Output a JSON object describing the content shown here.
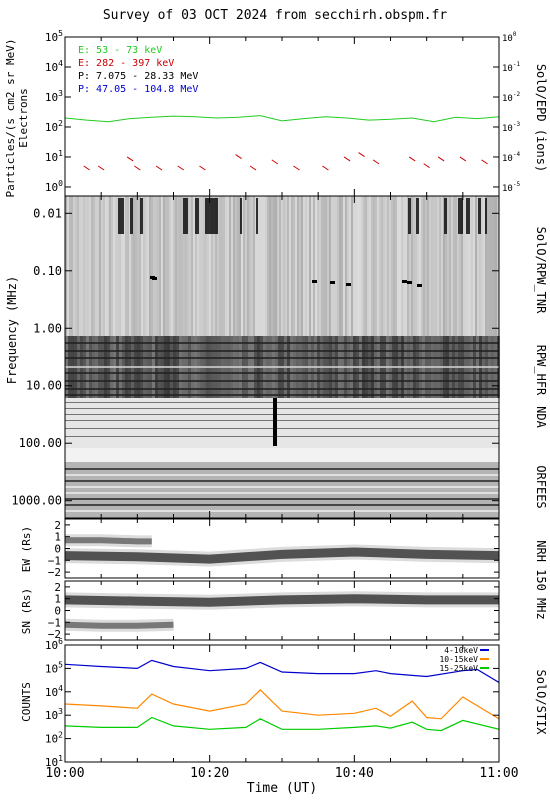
{
  "title": "Survey of 03 OCT 2024 from secchirh.obspm.fr",
  "panels": {
    "epd": {
      "ylabel": "Particles/(s cm2 sr MeV)",
      "ylabel2": "Electrons",
      "right_label": "SolO/EPD (ions)",
      "left_ticks": [
        {
          "base": "10",
          "exp": "5"
        },
        {
          "base": "10",
          "exp": "4"
        },
        {
          "base": "10",
          "exp": "3"
        },
        {
          "base": "10",
          "exp": "2"
        },
        {
          "base": "10",
          "exp": "1"
        },
        {
          "base": "10",
          "exp": "0"
        }
      ],
      "right_ticks": [
        {
          "base": "10",
          "exp": "0"
        },
        {
          "base": "10",
          "exp": "-1"
        },
        {
          "base": "10",
          "exp": "-2"
        },
        {
          "base": "10",
          "exp": "-3"
        },
        {
          "base": "10",
          "exp": "-4"
        },
        {
          "base": "10",
          "exp": "-5"
        }
      ],
      "legend": [
        {
          "text": "E: 53 - 73 keV",
          "color": "#22cc22"
        },
        {
          "text": "E: 282 - 397 keV",
          "color": "#cc0000"
        },
        {
          "text": "P: 7.075 - 28.33 MeV",
          "color": "#000000"
        },
        {
          "text": "P: 47.05 - 104.8 MeV",
          "color": "#0000cc"
        }
      ]
    },
    "radio": {
      "ylabel": "Frequency (MHz)",
      "ticks": [
        "0.01",
        "0.10",
        "1.00",
        "10.00",
        "100.00",
        "1000.00"
      ],
      "instruments": [
        "SolO/RPW_TNR",
        "RPW_HFR",
        "NDA",
        "ORFEES"
      ]
    },
    "ew": {
      "ylabel": "EW (Rs)",
      "ticks": [
        "2",
        "1",
        "0",
        "−1",
        "−2"
      ]
    },
    "sn": {
      "ylabel": "SN (Rs)",
      "ticks": [
        "2",
        "1",
        "0",
        "−1",
        "−2"
      ]
    },
    "nrh_label": "NRH 150 MHz",
    "stix": {
      "ylabel": "COUNTS",
      "right_label": "SolO/STIX",
      "ticks": [
        {
          "base": "10",
          "exp": "6"
        },
        {
          "base": "10",
          "exp": "5"
        },
        {
          "base": "10",
          "exp": "4"
        },
        {
          "base": "10",
          "exp": "3"
        },
        {
          "base": "10",
          "exp": "2"
        },
        {
          "base": "10",
          "exp": "1"
        }
      ],
      "legend": [
        {
          "text": "4-10keV",
          "color": "#0000cc"
        },
        {
          "text": "10-15keV",
          "color": "#ff8800"
        },
        {
          "text": "15-25keV",
          "color": "#00cc00"
        }
      ]
    },
    "xaxis": {
      "label": "Time (UT)",
      "ticks": [
        "10:00",
        "10:20",
        "10:40",
        "11:00"
      ]
    }
  },
  "chart_data": [
    {
      "type": "line",
      "panel": "SolO/EPD",
      "x_range": [
        "10:00",
        "11:00"
      ],
      "ylim_left": [
        0.5,
        100000
      ],
      "ylim_right": [
        5e-06,
        1
      ],
      "log_scale": true,
      "series": [
        {
          "name": "E: 53 - 73 keV",
          "color": "#22cc22",
          "x": [
            "10:00",
            "10:03",
            "10:06",
            "10:09",
            "10:12",
            "10:15",
            "10:18",
            "10:21",
            "10:24",
            "10:27",
            "10:30",
            "10:33",
            "10:36",
            "10:39",
            "10:42",
            "10:45",
            "10:48",
            "10:51",
            "10:54",
            "10:57",
            "11:00"
          ],
          "values": [
            200,
            170,
            150,
            190,
            210,
            230,
            220,
            200,
            210,
            240,
            160,
            190,
            220,
            200,
            170,
            180,
            200,
            150,
            210,
            190,
            220
          ]
        },
        {
          "name": "E: 282 - 397 keV",
          "color": "#cc0000",
          "x": [
            "10:03",
            "10:05",
            "10:09",
            "10:10",
            "10:13",
            "10:16",
            "10:19",
            "10:24",
            "10:26",
            "10:29",
            "10:32",
            "10:36",
            "10:39",
            "10:41",
            "10:43",
            "10:48",
            "10:50",
            "10:52",
            "10:55",
            "10:58"
          ],
          "values": [
            5,
            5,
            10,
            5,
            5,
            5,
            5,
            12,
            5,
            8,
            5,
            5,
            10,
            14,
            8,
            10,
            6,
            10,
            10,
            8
          ]
        }
      ]
    },
    {
      "type": "heatmap",
      "panel": "Radio dynamic spectrum",
      "x_range": [
        "10:00",
        "11:00"
      ],
      "ylim": [
        0.005,
        2000
      ],
      "log_scale": true,
      "instruments": [
        "SolO/RPW_TNR",
        "RPW_HFR",
        "NDA",
        "ORFEES"
      ]
    },
    {
      "type": "heatmap",
      "panel": "NRH 150 MHz EW",
      "x_range": [
        "10:00",
        "11:00"
      ],
      "ylim": [
        -2.5,
        2.5
      ],
      "ridges": [
        {
          "x": [
            "10:00",
            "10:10",
            "10:20",
            "10:30",
            "10:40",
            "10:50",
            "11:00"
          ],
          "values": [
            -0.6,
            -0.7,
            -0.9,
            -0.5,
            -0.3,
            -0.5,
            -0.6
          ]
        },
        {
          "x": [
            "10:00",
            "10:05",
            "10:10",
            "10:12"
          ],
          "values": [
            0.7,
            0.7,
            0.6,
            0.6
          ]
        }
      ]
    },
    {
      "type": "heatmap",
      "panel": "NRH 150 MHz SN",
      "x_range": [
        "10:00",
        "11:00"
      ],
      "ylim": [
        -2.5,
        2.5
      ],
      "ridges": [
        {
          "x": [
            "10:00",
            "10:10",
            "10:20",
            "10:30",
            "10:40",
            "10:50",
            "11:00"
          ],
          "values": [
            0.9,
            0.8,
            0.7,
            0.9,
            1.0,
            0.9,
            0.9
          ]
        },
        {
          "x": [
            "10:00",
            "10:05",
            "10:10",
            "10:15"
          ],
          "values": [
            -1.2,
            -1.3,
            -1.3,
            -1.2
          ]
        }
      ]
    },
    {
      "type": "line",
      "panel": "SolO/STIX",
      "x_range": [
        "10:00",
        "11:00"
      ],
      "ylim": [
        10,
        1000000
      ],
      "log_scale": true,
      "series": [
        {
          "name": "4-10keV",
          "color": "#0000cc",
          "x": [
            "10:00",
            "10:05",
            "10:10",
            "10:12",
            "10:15",
            "10:20",
            "10:25",
            "10:27",
            "10:30",
            "10:35",
            "10:40",
            "10:43",
            "10:45",
            "10:48",
            "10:50",
            "10:55",
            "10:57",
            "11:00"
          ],
          "values": [
            150000,
            120000,
            100000,
            220000,
            120000,
            80000,
            100000,
            180000,
            70000,
            60000,
            60000,
            80000,
            60000,
            50000,
            45000,
            80000,
            90000,
            25000
          ]
        },
        {
          "name": "10-15keV",
          "color": "#ff8800",
          "x": [
            "10:00",
            "10:05",
            "10:10",
            "10:12",
            "10:15",
            "10:20",
            "10:25",
            "10:27",
            "10:30",
            "10:35",
            "10:40",
            "10:43",
            "10:45",
            "10:48",
            "10:50",
            "10:52",
            "10:55",
            "11:00"
          ],
          "values": [
            3000,
            2500,
            2000,
            8000,
            3000,
            1500,
            3000,
            12000,
            1500,
            1000,
            1200,
            2000,
            900,
            4000,
            800,
            700,
            6000,
            700
          ]
        },
        {
          "name": "15-25keV",
          "color": "#00cc00",
          "x": [
            "10:00",
            "10:05",
            "10:10",
            "10:12",
            "10:15",
            "10:20",
            "10:25",
            "10:27",
            "10:30",
            "10:35",
            "10:40",
            "10:43",
            "10:45",
            "10:48",
            "10:50",
            "10:52",
            "10:55",
            "11:00"
          ],
          "values": [
            350,
            300,
            300,
            800,
            350,
            250,
            300,
            700,
            250,
            250,
            300,
            350,
            280,
            500,
            250,
            220,
            600,
            250
          ]
        }
      ]
    }
  ]
}
